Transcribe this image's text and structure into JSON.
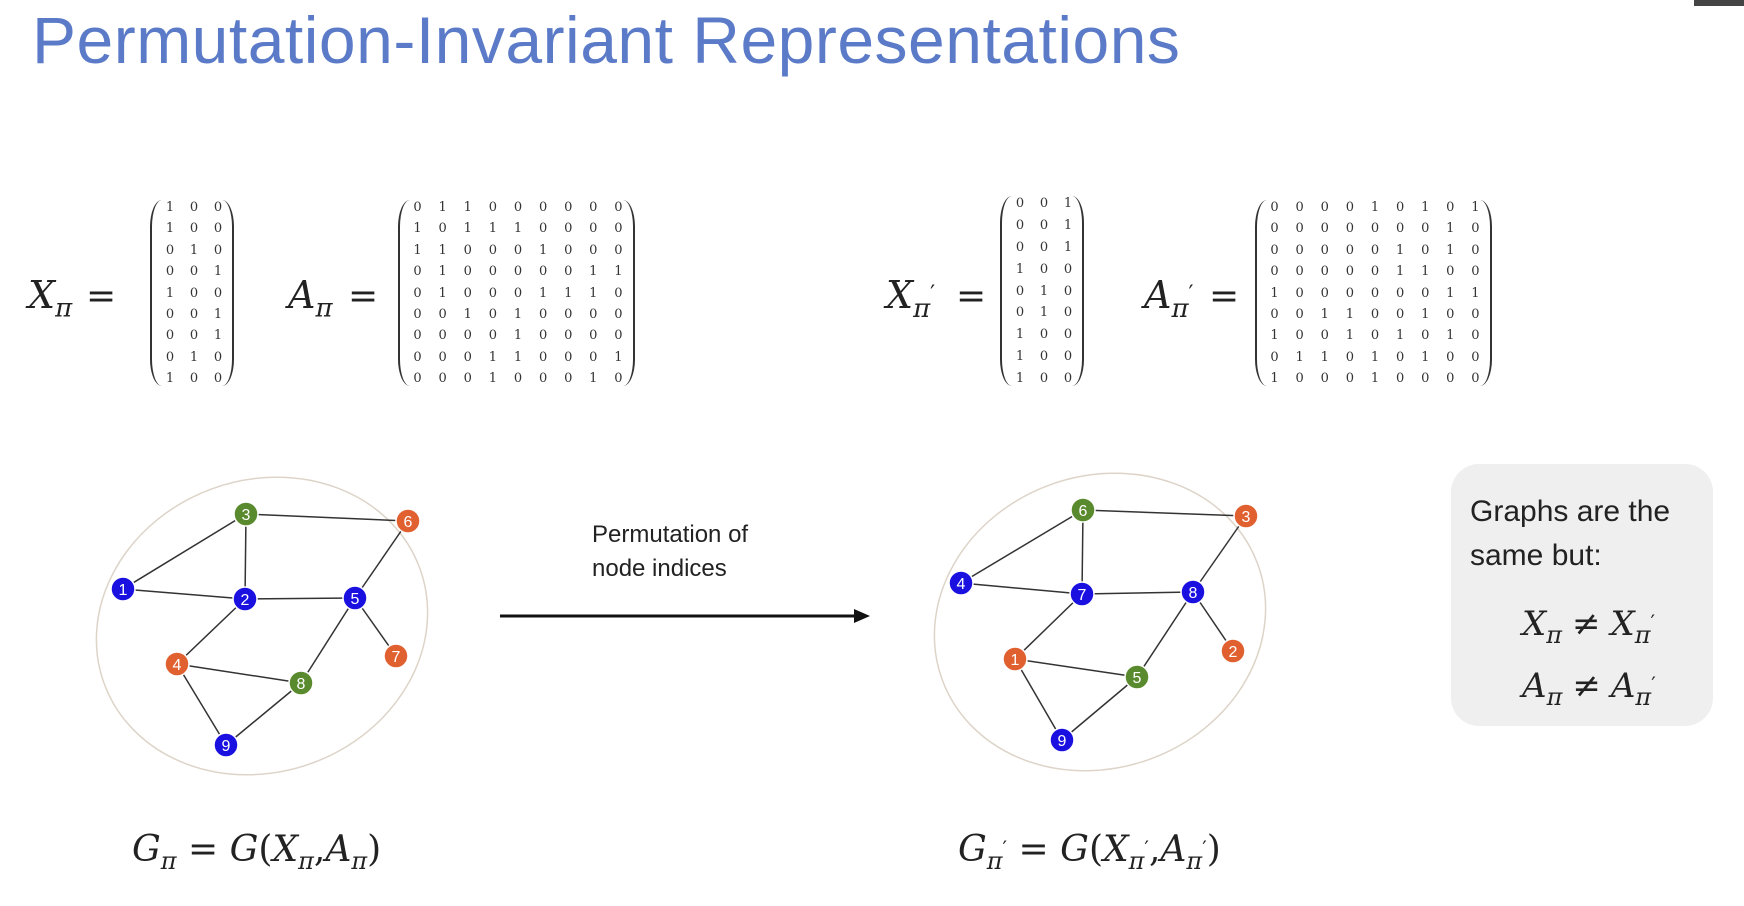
{
  "title": "Permutation-Invariant Representations",
  "symbols": {
    "X": "X",
    "A": "A",
    "G": "G",
    "pi": "π",
    "prime": "′",
    "eq": "=",
    "neq": "≠",
    "lparen": "(",
    "rparen": ")",
    "comma": ","
  },
  "matrices": {
    "X_pi": [
      [
        1,
        0,
        0
      ],
      [
        1,
        0,
        0
      ],
      [
        0,
        1,
        0
      ],
      [
        0,
        0,
        1
      ],
      [
        1,
        0,
        0
      ],
      [
        0,
        0,
        1
      ],
      [
        0,
        0,
        1
      ],
      [
        0,
        1,
        0
      ],
      [
        1,
        0,
        0
      ]
    ],
    "A_pi": [
      [
        0,
        1,
        1,
        0,
        0,
        0,
        0,
        0,
        0
      ],
      [
        1,
        0,
        1,
        1,
        1,
        0,
        0,
        0,
        0
      ],
      [
        1,
        1,
        0,
        0,
        0,
        1,
        0,
        0,
        0
      ],
      [
        0,
        1,
        0,
        0,
        0,
        0,
        0,
        1,
        1
      ],
      [
        0,
        1,
        0,
        0,
        0,
        1,
        1,
        1,
        0
      ],
      [
        0,
        0,
        1,
        0,
        1,
        0,
        0,
        0,
        0
      ],
      [
        0,
        0,
        0,
        0,
        1,
        0,
        0,
        0,
        0
      ],
      [
        0,
        0,
        0,
        1,
        1,
        0,
        0,
        0,
        1
      ],
      [
        0,
        0,
        0,
        1,
        0,
        0,
        0,
        1,
        0
      ]
    ],
    "X_pi_prime": [
      [
        0,
        0,
        1
      ],
      [
        0,
        0,
        1
      ],
      [
        0,
        0,
        1
      ],
      [
        1,
        0,
        0
      ],
      [
        0,
        1,
        0
      ],
      [
        0,
        1,
        0
      ],
      [
        1,
        0,
        0
      ],
      [
        1,
        0,
        0
      ],
      [
        1,
        0,
        0
      ]
    ],
    "A_pi_prime": [
      [
        0,
        0,
        0,
        0,
        1,
        0,
        1,
        0,
        1
      ],
      [
        0,
        0,
        0,
        0,
        0,
        0,
        0,
        1,
        0
      ],
      [
        0,
        0,
        0,
        0,
        0,
        1,
        0,
        1,
        0
      ],
      [
        0,
        0,
        0,
        0,
        0,
        1,
        1,
        0,
        0
      ],
      [
        1,
        0,
        0,
        0,
        0,
        0,
        0,
        1,
        1
      ],
      [
        0,
        0,
        1,
        1,
        0,
        0,
        1,
        0,
        0
      ],
      [
        1,
        0,
        0,
        1,
        0,
        1,
        0,
        1,
        0
      ],
      [
        0,
        1,
        1,
        0,
        1,
        0,
        1,
        0,
        0
      ],
      [
        1,
        0,
        0,
        0,
        1,
        0,
        0,
        0,
        0
      ]
    ]
  },
  "colors": {
    "blue": "#1a10e0",
    "green": "#5a8a2e",
    "orange": "#e06030",
    "title": "#5b7bc8"
  },
  "graph_left": {
    "nodes": [
      {
        "id": "1",
        "color": "blue"
      },
      {
        "id": "2",
        "color": "blue"
      },
      {
        "id": "3",
        "color": "green"
      },
      {
        "id": "4",
        "color": "orange"
      },
      {
        "id": "5",
        "color": "blue"
      },
      {
        "id": "6",
        "color": "orange"
      },
      {
        "id": "7",
        "color": "orange"
      },
      {
        "id": "8",
        "color": "green"
      },
      {
        "id": "9",
        "color": "blue"
      }
    ],
    "edges": [
      [
        "1",
        "3"
      ],
      [
        "1",
        "2"
      ],
      [
        "3",
        "2"
      ],
      [
        "3",
        "6"
      ],
      [
        "2",
        "5"
      ],
      [
        "2",
        "4"
      ],
      [
        "6",
        "5"
      ],
      [
        "5",
        "7"
      ],
      [
        "5",
        "8"
      ],
      [
        "4",
        "8"
      ],
      [
        "4",
        "9"
      ],
      [
        "8",
        "9"
      ]
    ]
  },
  "graph_right": {
    "nodes": [
      {
        "id": "6",
        "color": "green"
      },
      {
        "id": "3",
        "color": "orange"
      },
      {
        "id": "4",
        "color": "blue"
      },
      {
        "id": "7",
        "color": "blue"
      },
      {
        "id": "8",
        "color": "blue"
      },
      {
        "id": "1",
        "color": "orange"
      },
      {
        "id": "5",
        "color": "green"
      },
      {
        "id": "2",
        "color": "orange"
      },
      {
        "id": "9",
        "color": "blue"
      }
    ],
    "edges": [
      [
        "4",
        "6"
      ],
      [
        "4",
        "7"
      ],
      [
        "6",
        "7"
      ],
      [
        "6",
        "3"
      ],
      [
        "7",
        "8"
      ],
      [
        "7",
        "1"
      ],
      [
        "3",
        "8"
      ],
      [
        "8",
        "2"
      ],
      [
        "8",
        "5"
      ],
      [
        "1",
        "5"
      ],
      [
        "1",
        "9"
      ],
      [
        "5",
        "9"
      ]
    ]
  },
  "arrow_label": [
    "Permutation of",
    "node indices"
  ],
  "note": {
    "text": "Graphs are the same but:"
  }
}
